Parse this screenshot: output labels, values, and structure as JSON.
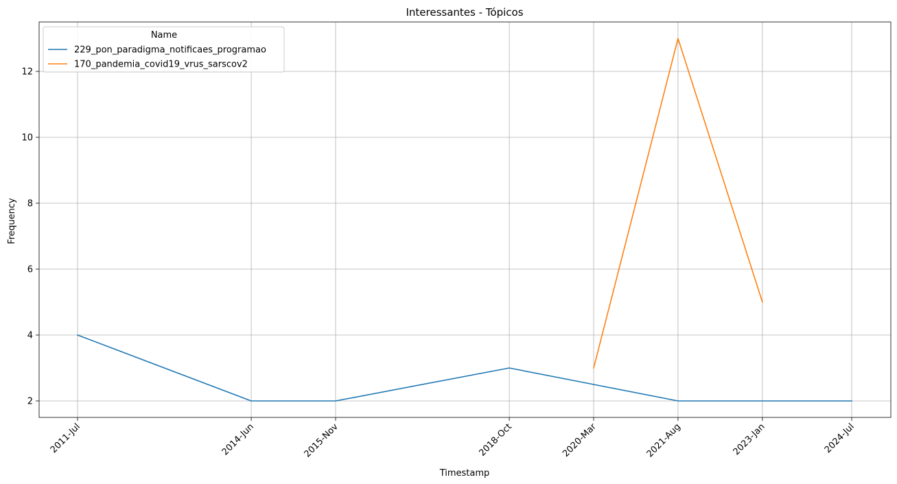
{
  "chart_data": {
    "type": "line",
    "title": "Interessantes - Tópicos",
    "xlabel": "Timestamp",
    "ylabel": "Frequency",
    "x": [
      "2011-Jul",
      "2014-Jun",
      "2015-Nov",
      "2018-Oct",
      "2020-Mar",
      "2021-Aug",
      "2023-Jan",
      "2024-Jul"
    ],
    "ylim": [
      1.5,
      13.5
    ],
    "yticks": [
      2,
      4,
      6,
      8,
      10,
      12
    ],
    "grid": true,
    "legend": {
      "title": "Name",
      "placement": "top-left"
    },
    "series": [
      {
        "name": "229_pon_paradigma_notificaes_programao",
        "color": "#1f77b4",
        "values": [
          4,
          2,
          2,
          3,
          2.5,
          2,
          2,
          2
        ]
      },
      {
        "name": "170_pandemia_covid19_vrus_sarscov2",
        "color": "#ff7f0e",
        "values": [
          null,
          null,
          null,
          null,
          3,
          13,
          5,
          null
        ]
      }
    ]
  }
}
